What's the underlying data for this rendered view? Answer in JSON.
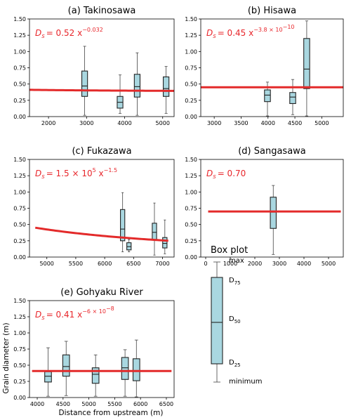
{
  "figure": {
    "y_axis_title": "Grain diameter (m)",
    "x_axis_title": "Distance from upstream (m)"
  },
  "legend": {
    "title": "Box plot",
    "labels": {
      "max": "max",
      "d75": "D75",
      "d50": "D50",
      "d25": "D25",
      "minimum": "minimum"
    }
  },
  "colors": {
    "box_fill": "#a9d7e0",
    "fit_line": "#e32a2a",
    "formula": "#e8262b"
  },
  "chart_data": [
    {
      "id": "a",
      "type": "box",
      "title": "(a) Takinosawa",
      "formula": {
        "base": "D",
        "sub": "s",
        "rhs": "= 0.52 x",
        "sup": "−0.032"
      },
      "xlim": [
        1500,
        5300
      ],
      "ylim": [
        0,
        1.5
      ],
      "xticks": [
        2000,
        3000,
        4000,
        5000
      ],
      "yticks": [
        0.0,
        0.25,
        0.5,
        0.75,
        1.0,
        1.25,
        1.5
      ],
      "ytick_labels": [
        "0.00",
        "0.25",
        "0.50",
        "0.75",
        "1.00",
        "1.25",
        "1.50"
      ],
      "box_width": 150,
      "boxes": [
        {
          "x": 2950,
          "min": 0.02,
          "q1": 0.31,
          "median": 0.47,
          "q3": 0.7,
          "max": 1.08
        },
        {
          "x": 3880,
          "min": 0.05,
          "q1": 0.13,
          "median": 0.22,
          "q3": 0.31,
          "max": 0.64
        },
        {
          "x": 4330,
          "min": 0.02,
          "q1": 0.3,
          "median": 0.46,
          "q3": 0.65,
          "max": 0.98
        },
        {
          "x": 5090,
          "min": 0.05,
          "q1": 0.31,
          "median": 0.43,
          "q3": 0.61,
          "max": 0.77
        }
      ],
      "fit": {
        "a": 0.52,
        "b": -0.032,
        "x_start": 1500,
        "x_end": 5300
      }
    },
    {
      "id": "b",
      "type": "box",
      "title": "(b) Hisawa",
      "formula": {
        "base": "D",
        "sub": "s",
        "rhs": "= 0.45 x",
        "sup": "−3.8 × 10"
      },
      "formula_sup2": "−10",
      "xlim": [
        2750,
        5400
      ],
      "ylim": [
        0,
        1.5
      ],
      "xticks": [
        3000,
        3500,
        4000,
        4500,
        5000
      ],
      "yticks": [
        0.0,
        0.25,
        0.5,
        0.75,
        1.0,
        1.25,
        1.5
      ],
      "ytick_labels": [
        "0.00",
        "0.25",
        "0.50",
        "0.75",
        "1.00",
        "1.25",
        "1.50"
      ],
      "box_width": 110,
      "boxes": [
        {
          "x": 3990,
          "min": 0.01,
          "q1": 0.23,
          "median": 0.33,
          "q3": 0.41,
          "max": 0.53
        },
        {
          "x": 4460,
          "min": 0.03,
          "q1": 0.2,
          "median": 0.3,
          "q3": 0.37,
          "max": 0.57
        },
        {
          "x": 4720,
          "min": 0.01,
          "q1": 0.43,
          "median": 0.73,
          "q3": 1.2,
          "max": 1.47
        }
      ],
      "fit": {
        "a": 0.45,
        "b": -3.8e-10,
        "x_start": 2750,
        "x_end": 5400
      }
    },
    {
      "id": "c",
      "type": "box",
      "title": "(c) Fukazawa",
      "formula": {
        "base": "D",
        "sub": "s",
        "rhs": "= 1.5 × 10",
        "sup": "5",
        "rhs2": " x",
        "sup2": "−1.5"
      },
      "xlim": [
        4700,
        7200
      ],
      "ylim": [
        0,
        1.5
      ],
      "xticks": [
        5000,
        5500,
        6000,
        6500,
        7000
      ],
      "yticks": [
        0.0,
        0.25,
        0.5,
        0.75,
        1.0,
        1.25,
        1.5
      ],
      "ytick_labels": [
        "0.00",
        "0.25",
        "0.50",
        "0.75",
        "1.00",
        "1.25",
        "1.50"
      ],
      "box_width": 75,
      "boxes": [
        {
          "x": 6310,
          "min": 0.08,
          "q1": 0.25,
          "median": 0.43,
          "q3": 0.73,
          "max": 0.99
        },
        {
          "x": 6420,
          "min": 0.08,
          "q1": 0.11,
          "median": 0.16,
          "q3": 0.22,
          "max": 0.27
        },
        {
          "x": 6860,
          "min": 0.03,
          "q1": 0.26,
          "median": 0.38,
          "q3": 0.52,
          "max": 0.83
        },
        {
          "x": 7040,
          "min": 0.05,
          "q1": 0.14,
          "median": 0.21,
          "q3": 0.3,
          "max": 0.57
        }
      ],
      "fit": {
        "a": 150000,
        "b": -1.5,
        "x_start": 4800,
        "x_end": 7100
      }
    },
    {
      "id": "d",
      "type": "box",
      "title": "(d) Sangasawa",
      "formula": {
        "base": "D",
        "sub": "s",
        "rhs": "= 0.70",
        "sup": ""
      },
      "xlim": [
        -200,
        5600
      ],
      "ylim": [
        0,
        1.5
      ],
      "xticks": [
        0,
        1000,
        2000,
        3000,
        4000,
        5000
      ],
      "yticks": [
        0.0,
        0.25,
        0.5,
        0.75,
        1.0,
        1.25,
        1.5
      ],
      "ytick_labels": [
        "0.00",
        "0.25",
        "0.50",
        "0.75",
        "1.00",
        "1.25",
        "1.50"
      ],
      "box_width": 240,
      "boxes": [
        {
          "x": 2750,
          "min": 0.04,
          "q1": 0.44,
          "median": 0.69,
          "q3": 0.92,
          "max": 1.1
        }
      ],
      "fit": {
        "a": 0.7,
        "b": 0,
        "x_start": 100,
        "x_end": 5500
      }
    },
    {
      "id": "e",
      "type": "box",
      "title": "(e) Gohyaku River",
      "formula": {
        "base": "D",
        "sub": "s",
        "rhs": "= 0.41 x",
        "sup": "−6 × 10",
        "sup2": "−8"
      },
      "xlim": [
        3850,
        6650
      ],
      "ylim": [
        0,
        1.5
      ],
      "xticks": [
        4000,
        4500,
        5000,
        5500,
        6000,
        6500
      ],
      "yticks": [
        0.0,
        0.25,
        0.5,
        0.75,
        1.0,
        1.25,
        1.5
      ],
      "ytick_labels": [
        "0.00",
        "0.25",
        "0.50",
        "0.75",
        "1.00",
        "1.25",
        "1.50"
      ],
      "box_width": 130,
      "boxes": [
        {
          "x": 4210,
          "min": 0.02,
          "q1": 0.24,
          "median": 0.33,
          "q3": 0.4,
          "max": 0.77
        },
        {
          "x": 4560,
          "min": 0.03,
          "q1": 0.33,
          "median": 0.48,
          "q3": 0.66,
          "max": 0.87
        },
        {
          "x": 5130,
          "min": 0.02,
          "q1": 0.22,
          "median": 0.36,
          "q3": 0.46,
          "max": 0.66
        },
        {
          "x": 5700,
          "min": 0.02,
          "q1": 0.28,
          "median": 0.46,
          "q3": 0.62,
          "max": 0.74
        },
        {
          "x": 5920,
          "min": 0.01,
          "q1": 0.26,
          "median": 0.41,
          "q3": 0.6,
          "max": 0.89
        }
      ],
      "fit": {
        "a": 0.41,
        "b": -6e-08,
        "x_start": 3900,
        "x_end": 6600
      }
    }
  ]
}
